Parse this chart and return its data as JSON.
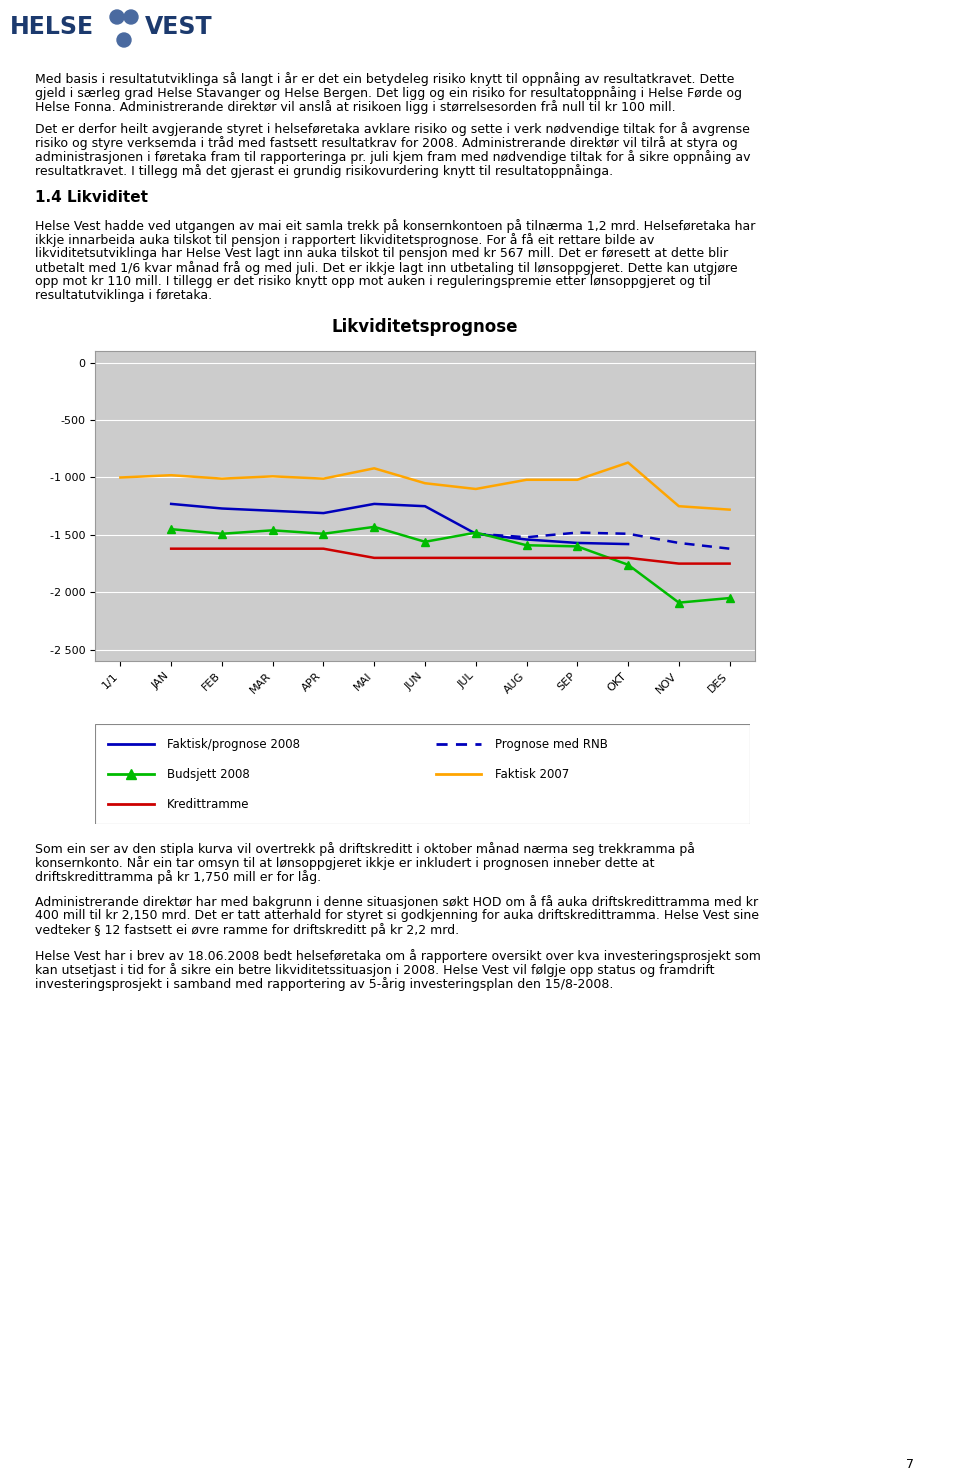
{
  "title": "Likviditetsprognose",
  "x_labels": [
    "1/1",
    "JAN",
    "FEB",
    "MAR",
    "APR",
    "MAI",
    "JUN",
    "JUL",
    "AUG",
    "SEP",
    "OKT",
    "NOV",
    "DES"
  ],
  "faktisk_prognose_2008": [
    null,
    -1230,
    -1270,
    -1290,
    -1310,
    -1230,
    -1250,
    -1490,
    -1540,
    -1570,
    -1580,
    null,
    null
  ],
  "prognose_rnb": [
    null,
    null,
    null,
    null,
    null,
    null,
    null,
    -1490,
    -1520,
    -1480,
    -1490,
    -1570,
    -1620
  ],
  "budsjett_2008": [
    null,
    -1450,
    -1490,
    -1460,
    -1490,
    -1430,
    -1560,
    -1480,
    -1590,
    -1600,
    -1760,
    -2090,
    -2050
  ],
  "faktisk_2007": [
    -1000,
    -980,
    -1010,
    -990,
    -1010,
    -920,
    -1050,
    -1100,
    -1020,
    -1020,
    -870,
    -1250,
    -1280
  ],
  "kredittramme": [
    null,
    -1620,
    -1620,
    -1620,
    -1620,
    -1700,
    -1700,
    -1700,
    -1700,
    -1700,
    -1700,
    -1750,
    -1750
  ],
  "ylim": [
    -2600,
    100
  ],
  "yticks": [
    0,
    -500,
    -1000,
    -1500,
    -2000,
    -2500
  ],
  "ytick_labels": [
    "0",
    "-500",
    "-1 000",
    "-1 500",
    "-2 000",
    "-2 500"
  ],
  "chart_bg": "#cccccc",
  "line_faktisk_color": "#0000bb",
  "line_rnb_color": "#0000bb",
  "line_budsjett_color": "#00bb00",
  "line_faktisk2007_color": "#ffa500",
  "line_kreditt_color": "#cc0000",
  "para1_lines": [
    "Med basis i resultatutviklinga så langt i år er det ein betydeleg risiko knytt til oppnåing av resultatkravet. Dette",
    "gjeld i særleg grad Helse Stavanger og Helse Bergen. Det ligg og ein risiko for resultatoppnåing i Helse Førde og",
    "Helse Fonna. Administrerande direktør vil anslå at risikoen ligg i størrelsesorden frå null til kr 100 mill."
  ],
  "para2_lines": [
    "Det er derfor heilt avgjerande styret i helseføretaka avklare risiko og sette i verk nødvendige tiltak for å avgrense",
    "risiko og styre verksemda i tråd med fastsett resultatkrav for 2008. Administrerande direktør vil tilrå at styra og",
    "administrasjonen i føretaka fram til rapporteringa pr. juli kjem fram med nødvendige tiltak for å sikre oppnåing av",
    "resultatkravet. I tillegg må det gjerast ei grundig risikovurdering knytt til resultatoppnåinga."
  ],
  "section_header": "1.4 Likviditet",
  "section_para_lines": [
    "Helse Vest hadde ved utgangen av mai eit samla trekk på konsernkontoen på tilnærma 1,2 mrd. Helseføretaka har",
    "ikkje innarbeida auka tilskot til pensjon i rapportert likviditetsprognose. For å få eit rettare bilde av",
    "likviditetsutviklinga har Helse Vest lagt inn auka tilskot til pensjon med kr 567 mill. Det er føresett at dette blir",
    "utbetalt med 1/6 kvar månad frå og med juli. Det er ikkje lagt inn utbetaling til lønsoppgjeret. Dette kan utgjøre",
    "opp mot kr 110 mill. I tillegg er det risiko knytt opp mot auken i reguleringspremie etter lønsoppgjeret og til",
    "resultatutviklinga i føretaka."
  ],
  "after_chart_para1_lines": [
    "Som ein ser av den stipla kurva vil overtrekk på driftskreditt i oktober månad nærma seg trekkramma på",
    "konsernkonto. Når ein tar omsyn til at lønsoppgjeret ikkje er inkludert i prognosen inneber dette at",
    "driftskredittramma på kr 1,750 mill er for låg."
  ],
  "after_chart_para2_lines": [
    "Administrerande direktør har med bakgrunn i denne situasjonen søkt HOD om å få auka driftskredittramma med kr",
    "400 mill til kr 2,150 mrd. Det er tatt atterhald for styret si godkjenning for auka driftskredittramma. Helse Vest sine",
    "vedteker § 12 fastsett ei øvre ramme for driftskreditt på kr 2,2 mrd."
  ],
  "after_chart_para3_lines": [
    "Helse Vest har i brev av 18.06.2008 bedt helseføretaka om å rapportere oversikt over kva investeringsprosjekt som",
    "kan utsetjast i tid for å sikre ein betre likviditetssituasjon i 2008. Helse Vest vil følgje opp status og framdrift",
    "investeringsprosjekt i samband med rapportering av 5-årig investeringsplan den 15/8-2008."
  ],
  "page_number": "7",
  "text_fontsize": 9.0,
  "section_hdr_fontsize": 11.0
}
